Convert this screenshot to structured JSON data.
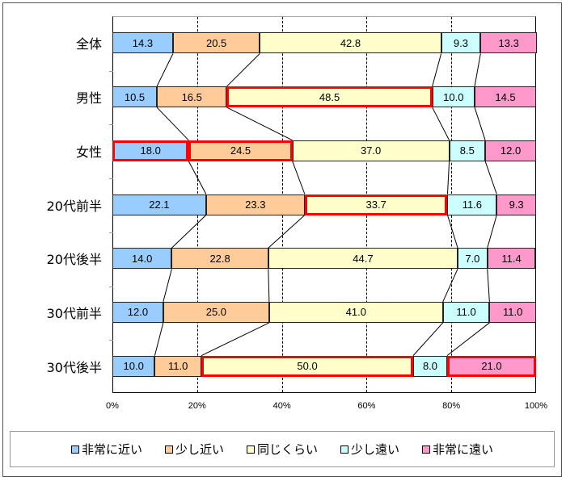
{
  "chart_data": {
    "type": "bar",
    "orientation": "horizontal",
    "stacked": "100%",
    "title": "",
    "xlabel": "",
    "ylabel": "",
    "xlim": [
      0,
      100
    ],
    "x_ticks": [
      "0%",
      "20%",
      "40%",
      "60%",
      "80%",
      "100%"
    ],
    "grid": "vertical dashed",
    "legend_position": "bottom",
    "categories": [
      "全体",
      "男性",
      "女性",
      "20代前半",
      "20代後半",
      "30代前半",
      "30代後半"
    ],
    "series": [
      {
        "name": "非常に近い",
        "color": "#99ccff",
        "values": [
          14.3,
          10.5,
          18.0,
          22.1,
          14.0,
          12.0,
          10.0
        ]
      },
      {
        "name": "少し近い",
        "color": "#ffcc99",
        "values": [
          20.5,
          16.5,
          24.5,
          23.3,
          22.8,
          25.0,
          11.0
        ]
      },
      {
        "name": "同じくらい",
        "color": "#ffffcc",
        "values": [
          42.8,
          48.5,
          37.0,
          33.7,
          44.7,
          41.0,
          50.0
        ]
      },
      {
        "name": "少し遠い",
        "color": "#ccffff",
        "values": [
          9.3,
          10.0,
          8.5,
          11.6,
          7.0,
          11.0,
          8.0
        ]
      },
      {
        "name": "非常に遠い",
        "color": "#ff99cc",
        "values": [
          13.3,
          14.5,
          12.0,
          9.3,
          11.4,
          11.0,
          21.0
        ]
      }
    ],
    "annotations": {
      "highlight_color": "#ff0000",
      "highlighted_segments": [
        {
          "category": "男性",
          "series": "同じくらい"
        },
        {
          "category": "女性",
          "series": "非常に近い"
        },
        {
          "category": "女性",
          "series": "少し近い"
        },
        {
          "category": "20代前半",
          "series": "同じくらい"
        },
        {
          "category": "30代後半",
          "series": "同じくらい"
        },
        {
          "category": "30代後半",
          "series": "非常に遠い"
        }
      ],
      "series_lines": true
    }
  },
  "legend": {
    "items": [
      "非常に近い",
      "少し近い",
      "同じくらい",
      "少し遠い",
      "非常に遠い"
    ]
  }
}
